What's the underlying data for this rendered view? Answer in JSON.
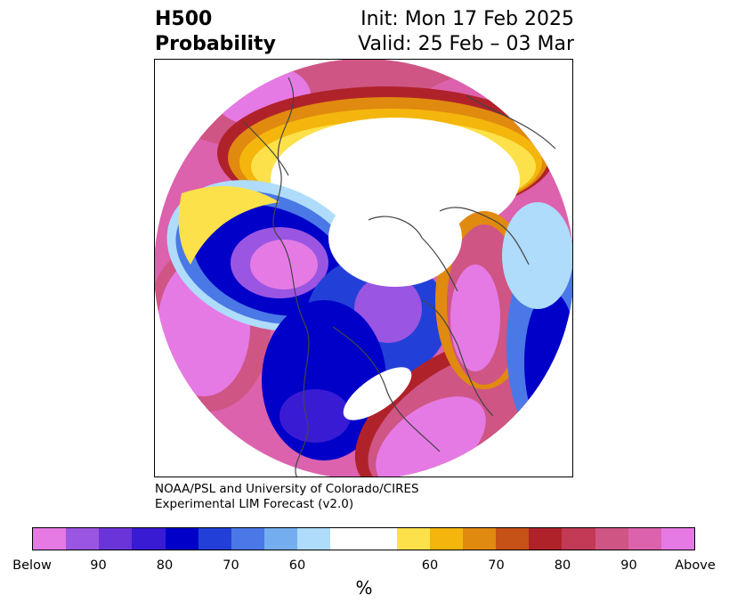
{
  "header": {
    "variable": "H500",
    "field": "Probability",
    "init": "Init: Mon 17 Feb 2025",
    "valid": "Valid: 25 Feb – 03 Mar"
  },
  "credit": {
    "line1": "NOAA/PSL and University of Colorado/CIRES",
    "line2": "Experimental LIM Forecast (v2.0)"
  },
  "colorbar": {
    "unit": "%",
    "ticks": [
      "Below",
      "90",
      "80",
      "70",
      "60",
      "60",
      "70",
      "80",
      "90",
      "Above"
    ],
    "colors": {
      "below_colors": [
        "#e57ae5",
        "#9a55e2",
        "#6a35d8",
        "#3a1bd4",
        "#0000c8",
        "#2240d8",
        "#4a78e6",
        "#74aef0",
        "#aedcfa"
      ],
      "neutral": "#ffffff",
      "above_colors": [
        "#fce14a",
        "#f4b60c",
        "#e08a10",
        "#c65218",
        "#b0222a",
        "#c23a55",
        "#cf5585",
        "#dc62ad",
        "#e57ae5"
      ]
    }
  },
  "map": {
    "projection": "north-polar-stereographic",
    "coastline_color": "#444444"
  }
}
